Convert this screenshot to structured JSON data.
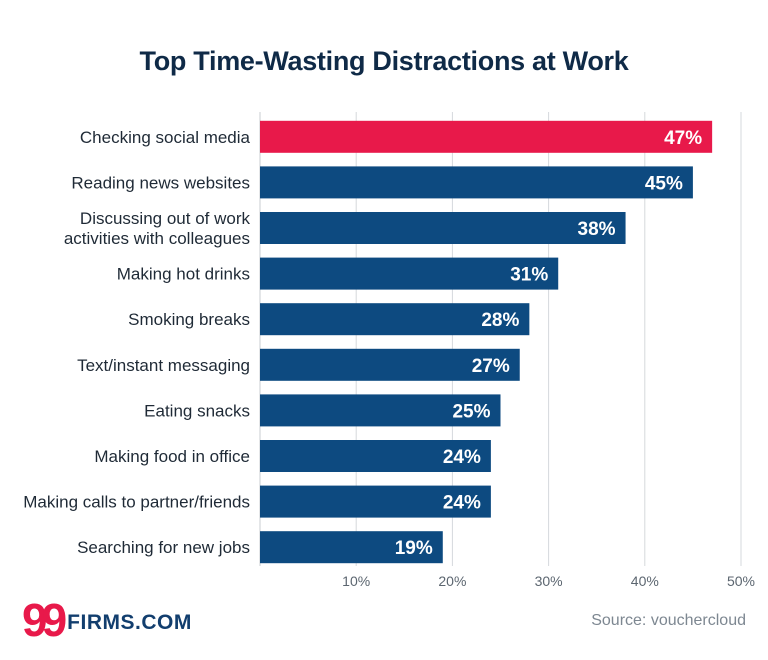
{
  "chart_data": {
    "type": "bar",
    "orientation": "horizontal",
    "title": "Top Time-Wasting Distractions at Work",
    "categories": [
      [
        "Checking social media"
      ],
      [
        "Reading news websites"
      ],
      [
        "Discussing out of work",
        "activities with colleagues"
      ],
      [
        "Making hot drinks"
      ],
      [
        "Smoking breaks"
      ],
      [
        "Text/instant messaging"
      ],
      [
        "Eating snacks"
      ],
      [
        "Making food in office"
      ],
      [
        "Making calls to partner/friends"
      ],
      [
        "Searching for new jobs"
      ]
    ],
    "values": [
      47,
      45,
      38,
      31,
      28,
      27,
      25,
      24,
      24,
      19
    ],
    "value_labels": [
      "47%",
      "45%",
      "38%",
      "31%",
      "28%",
      "27%",
      "25%",
      "24%",
      "24%",
      "19%"
    ],
    "highlight_index": 0,
    "xlim": [
      0,
      50
    ],
    "xticks": [
      10,
      20,
      30,
      40,
      50
    ],
    "xtick_labels": [
      "10%",
      "20%",
      "30%",
      "40%",
      "50%"
    ],
    "grid": true,
    "colors": {
      "highlight": "#e8194a",
      "bar": "#0d4a80"
    }
  },
  "branding": {
    "logo_mark": "99",
    "logo_text": "FIRMS.COM"
  },
  "source": "Source: vouchercloud"
}
